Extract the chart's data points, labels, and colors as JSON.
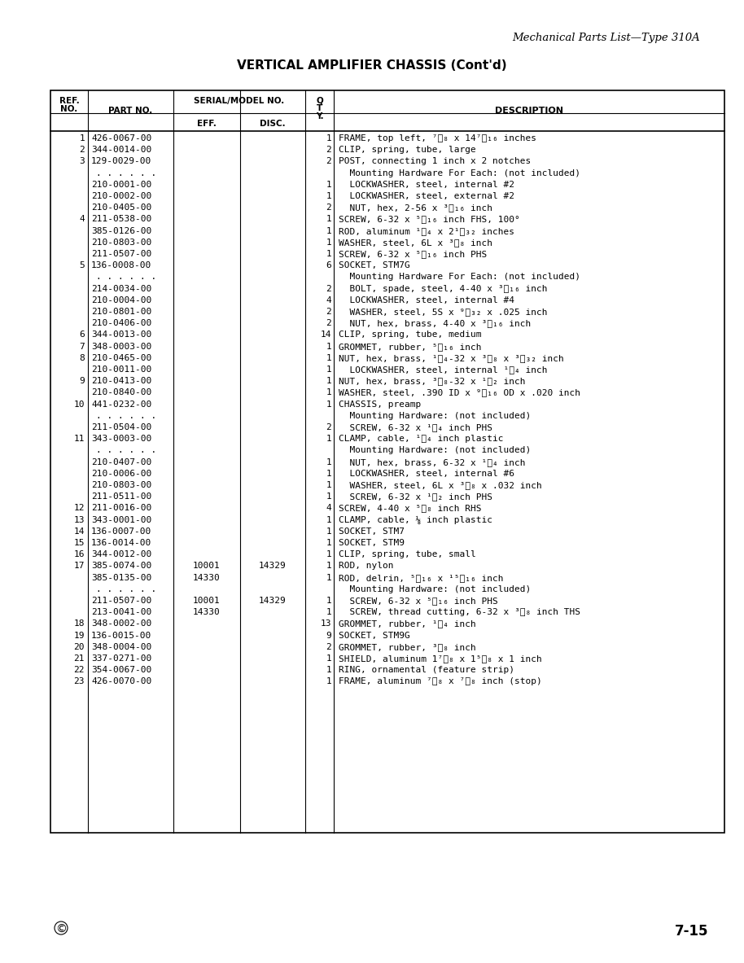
{
  "page_header_right": "Mechanical Parts List—Type 310A",
  "page_title": "VERTICAL AMPLIFIER CHASSIS (Cont'd)",
  "footer_left": "©",
  "footer_right": "7-15",
  "col_headers": [
    "REF.\nNO.",
    "PART NO.",
    "EFF.",
    "DISC.",
    "Q\nT\nY.",
    "DESCRIPTION"
  ],
  "rows": [
    {
      "ref": "1",
      "part": "426-0067-00",
      "eff": "",
      "disc": "",
      "qty": "1",
      "desc": "FRAME, top left, ⁷⁄₈ x 14⁷⁄₁₆ inches"
    },
    {
      "ref": "2",
      "part": "344-0014-00",
      "eff": "",
      "disc": "",
      "qty": "2",
      "desc": "CLIP, spring, tube, large"
    },
    {
      "ref": "3",
      "part": "129-0029-00",
      "eff": "",
      "disc": "",
      "qty": "2",
      "desc": "POST, connecting 1 inch x 2 notches"
    },
    {
      "ref": "",
      "part": ". . . . . .",
      "eff": "",
      "disc": "",
      "qty": "-",
      "desc": "  Mounting Hardware For Each: (not included)"
    },
    {
      "ref": "",
      "part": "210-0001-00",
      "eff": "",
      "disc": "",
      "qty": "1",
      "desc": "  LOCKWASHER, steel, internal #2"
    },
    {
      "ref": "",
      "part": "210-0002-00",
      "eff": "",
      "disc": "",
      "qty": "1",
      "desc": "  LOCKWASHER, steel, external #2"
    },
    {
      "ref": "",
      "part": "210-0405-00",
      "eff": "",
      "disc": "",
      "qty": "2",
      "desc": "  NUT, hex, 2-56 x ³⁄₁₆ inch"
    },
    {
      "ref": "4",
      "part": "211-0538-00",
      "eff": "",
      "disc": "",
      "qty": "1",
      "desc": "SCREW, 6-32 x ⁵⁄₁₆ inch FHS, 100°"
    },
    {
      "ref": "",
      "part": "385-0126-00",
      "eff": "",
      "disc": "",
      "qty": "1",
      "desc": "ROD, aluminum ¹⁄₄ x 2¹⁄₃₂ inches"
    },
    {
      "ref": "",
      "part": "210-0803-00",
      "eff": "",
      "disc": "",
      "qty": "1",
      "desc": "WASHER, steel, 6L x ³⁄₈ inch"
    },
    {
      "ref": "",
      "part": "211-0507-00",
      "eff": "",
      "disc": "",
      "qty": "1",
      "desc": "SCREW, 6-32 x ⁵⁄₁₆ inch PHS"
    },
    {
      "ref": "5",
      "part": "136-0008-00",
      "eff": "",
      "disc": "",
      "qty": "6",
      "desc": "SOCKET, STM7G"
    },
    {
      "ref": "",
      "part": ". . . . . .",
      "eff": "",
      "disc": "",
      "qty": "-",
      "desc": "  Mounting Hardware For Each: (not included)"
    },
    {
      "ref": "",
      "part": "214-0034-00",
      "eff": "",
      "disc": "",
      "qty": "2",
      "desc": "  BOLT, spade, steel, 4-40 x ³⁄₁₆ inch"
    },
    {
      "ref": "",
      "part": "210-0004-00",
      "eff": "",
      "disc": "",
      "qty": "4",
      "desc": "  LOCKWASHER, steel, internal #4"
    },
    {
      "ref": "",
      "part": "210-0801-00",
      "eff": "",
      "disc": "",
      "qty": "2",
      "desc": "  WASHER, steel, 5S x ⁹⁄₃₂ x .025 inch"
    },
    {
      "ref": "",
      "part": "210-0406-00",
      "eff": "",
      "disc": "",
      "qty": "2",
      "desc": "  NUT, hex, brass, 4-40 x ³⁄₁₆ inch"
    },
    {
      "ref": "6",
      "part": "344-0013-00",
      "eff": "",
      "disc": "",
      "qty": "14",
      "desc": "CLIP, spring, tube, medium"
    },
    {
      "ref": "7",
      "part": "348-0003-00",
      "eff": "",
      "disc": "",
      "qty": "1",
      "desc": "GROMMET, rubber, ⁵⁄₁₆ inch"
    },
    {
      "ref": "8",
      "part": "210-0465-00",
      "eff": "",
      "disc": "",
      "qty": "1",
      "desc": "NUT, hex, brass, ¹⁄₄-32 x ³⁄₈ x ³⁄₃₂ inch"
    },
    {
      "ref": "",
      "part": "210-0011-00",
      "eff": "",
      "disc": "",
      "qty": "1",
      "desc": "  LOCKWASHER, steel, internal ¹⁄₄ inch"
    },
    {
      "ref": "9",
      "part": "210-0413-00",
      "eff": "",
      "disc": "",
      "qty": "1",
      "desc": "NUT, hex, brass, ³⁄₈-32 x ¹⁄₂ inch"
    },
    {
      "ref": "",
      "part": "210-0840-00",
      "eff": "",
      "disc": "",
      "qty": "1",
      "desc": "WASHER, steel, .390 ID x ⁹⁄₁₆ OD x .020 inch"
    },
    {
      "ref": "10",
      "part": "441-0232-00",
      "eff": "",
      "disc": "",
      "qty": "1",
      "desc": "CHASSIS, preamp"
    },
    {
      "ref": "",
      "part": ". . . . . .",
      "eff": "",
      "disc": "",
      "qty": "-",
      "desc": "  Mounting Hardware: (not included)"
    },
    {
      "ref": "",
      "part": "211-0504-00",
      "eff": "",
      "disc": "",
      "qty": "2",
      "desc": "  SCREW, 6-32 x ¹⁄₄ inch PHS"
    },
    {
      "ref": "11",
      "part": "343-0003-00",
      "eff": "",
      "disc": "",
      "qty": "1",
      "desc": "CLAMP, cable, ¹⁄₄ inch plastic"
    },
    {
      "ref": "",
      "part": ". . . . . .",
      "eff": "",
      "disc": "",
      "qty": "-",
      "desc": "  Mounting Hardware: (not included)"
    },
    {
      "ref": "",
      "part": "210-0407-00",
      "eff": "",
      "disc": "",
      "qty": "1",
      "desc": "  NUT, hex, brass, 6-32 x ¹⁄₄ inch"
    },
    {
      "ref": "",
      "part": "210-0006-00",
      "eff": "",
      "disc": "",
      "qty": "1",
      "desc": "  LOCKWASHER, steel, internal #6"
    },
    {
      "ref": "",
      "part": "210-0803-00",
      "eff": "",
      "disc": "",
      "qty": "1",
      "desc": "  WASHER, steel, 6L x ³⁄₈ x .032 inch"
    },
    {
      "ref": "",
      "part": "211-0511-00",
      "eff": "",
      "disc": "",
      "qty": "1",
      "desc": "  SCREW, 6-32 x ¹⁄₂ inch PHS"
    },
    {
      "ref": "12",
      "part": "211-0016-00",
      "eff": "",
      "disc": "",
      "qty": "4",
      "desc": "SCREW, 4-40 x ⁵⁄₈ inch RHS"
    },
    {
      "ref": "13",
      "part": "343-0001-00",
      "eff": "",
      "disc": "",
      "qty": "1",
      "desc": "CLAMP, cable, ⅛ inch plastic"
    },
    {
      "ref": "14",
      "part": "136-0007-00",
      "eff": "",
      "disc": "",
      "qty": "1",
      "desc": "SOCKET, STM7"
    },
    {
      "ref": "15",
      "part": "136-0014-00",
      "eff": "",
      "disc": "",
      "qty": "1",
      "desc": "SOCKET, STM9"
    },
    {
      "ref": "16",
      "part": "344-0012-00",
      "eff": "",
      "disc": "",
      "qty": "1",
      "desc": "CLIP, spring, tube, small"
    },
    {
      "ref": "17",
      "part": "385-0074-00",
      "eff": "10001",
      "disc": "14329",
      "qty": "1",
      "desc": "ROD, nylon"
    },
    {
      "ref": "",
      "part": "385-0135-00",
      "eff": "14330",
      "disc": "",
      "qty": "1",
      "desc": "ROD, delrin, ⁵⁄₁₆ x ¹⁵⁄₁₆ inch"
    },
    {
      "ref": "",
      "part": ". . . . . .",
      "eff": "",
      "disc": "",
      "qty": "-",
      "desc": "  Mounting Hardware: (not included)"
    },
    {
      "ref": "",
      "part": "211-0507-00",
      "eff": "10001",
      "disc": "14329",
      "qty": "1",
      "desc": "  SCREW, 6-32 x ⁵⁄₁₆ inch PHS"
    },
    {
      "ref": "",
      "part": "213-0041-00",
      "eff": "14330",
      "disc": "",
      "qty": "1",
      "desc": "  SCREW, thread cutting, 6-32 x ³⁄₈ inch THS"
    },
    {
      "ref": "18",
      "part": "348-0002-00",
      "eff": "",
      "disc": "",
      "qty": "13",
      "desc": "GROMMET, rubber, ¹⁄₄ inch"
    },
    {
      "ref": "19",
      "part": "136-0015-00",
      "eff": "",
      "disc": "",
      "qty": "9",
      "desc": "SOCKET, STM9G"
    },
    {
      "ref": "20",
      "part": "348-0004-00",
      "eff": "",
      "disc": "",
      "qty": "2",
      "desc": "GROMMET, rubber, ³⁄₈ inch"
    },
    {
      "ref": "21",
      "part": "337-0271-00",
      "eff": "",
      "disc": "",
      "qty": "1",
      "desc": "SHIELD, aluminum 1⁷⁄₈ x 1⁵⁄₈ x 1 inch"
    },
    {
      "ref": "22",
      "part": "354-0067-00",
      "eff": "",
      "disc": "",
      "qty": "1",
      "desc": "RING, ornamental (feature strip)"
    },
    {
      "ref": "23",
      "part": "426-0070-00",
      "eff": "",
      "disc": "",
      "qty": "1",
      "desc": "FRAME, aluminum ⁷⁄₈ x ⁷⁄₈ inch (stop)"
    }
  ]
}
